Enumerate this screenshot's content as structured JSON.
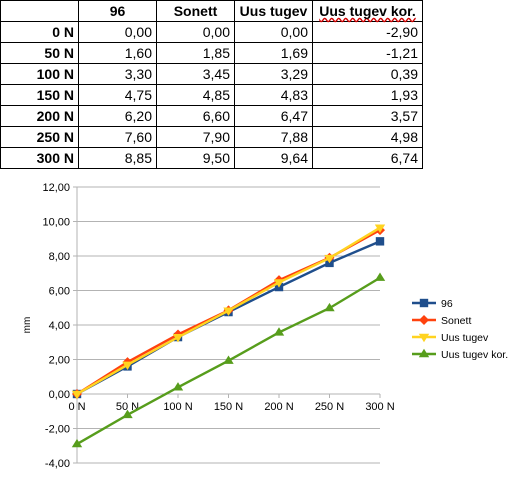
{
  "table": {
    "columns": [
      "",
      "96",
      "Sonett",
      "Uus tugev",
      "Uus tugev kor."
    ],
    "rows": [
      {
        "label": "0 N",
        "values": [
          "0,00",
          "0,00",
          "0,00",
          "-2,90"
        ]
      },
      {
        "label": "50 N",
        "values": [
          "1,60",
          "1,85",
          "1,69",
          "-1,21"
        ]
      },
      {
        "label": "100 N",
        "values": [
          "3,30",
          "3,45",
          "3,29",
          "0,39"
        ]
      },
      {
        "label": "150 N",
        "values": [
          "4,75",
          "4,85",
          "4,83",
          "1,93"
        ]
      },
      {
        "label": "200 N",
        "values": [
          "6,20",
          "6,60",
          "6,47",
          "3,57"
        ]
      },
      {
        "label": "250 N",
        "values": [
          "7,60",
          "7,90",
          "7,88",
          "4,98"
        ]
      },
      {
        "label": "300 N",
        "values": [
          "8,85",
          "9,50",
          "9,64",
          "6,74"
        ]
      }
    ]
  },
  "chart_data": {
    "type": "line",
    "categories": [
      "0 N",
      "50 N",
      "100 N",
      "150 N",
      "200 N",
      "250 N",
      "300 N"
    ],
    "ylabel": "mm",
    "ylim": [
      -4,
      12
    ],
    "yticks": [
      -4,
      -2,
      0,
      2,
      4,
      6,
      8,
      10,
      12
    ],
    "ytick_labels": [
      "-4,00",
      "-2,00",
      "0,00",
      "2,00",
      "4,00",
      "6,00",
      "8,00",
      "10,00",
      "12,00"
    ],
    "grid": true,
    "legend": "right",
    "series": [
      {
        "name": "96",
        "color": "#1f4e8c",
        "marker": "square",
        "values": [
          0.0,
          1.6,
          3.3,
          4.75,
          6.2,
          7.6,
          8.85
        ]
      },
      {
        "name": "Sonett",
        "color": "#ff420e",
        "marker": "diamond",
        "values": [
          0.0,
          1.85,
          3.45,
          4.85,
          6.6,
          7.9,
          9.5
        ]
      },
      {
        "name": "Uus tugev",
        "color": "#ffd320",
        "marker": "triangle-down",
        "values": [
          0.0,
          1.69,
          3.29,
          4.83,
          6.47,
          7.88,
          9.64
        ]
      },
      {
        "name": "Uus tugev kor.",
        "color": "#579d1c",
        "marker": "triangle-up",
        "values": [
          -2.9,
          -1.21,
          0.39,
          1.93,
          3.57,
          4.98,
          6.74
        ]
      }
    ]
  }
}
